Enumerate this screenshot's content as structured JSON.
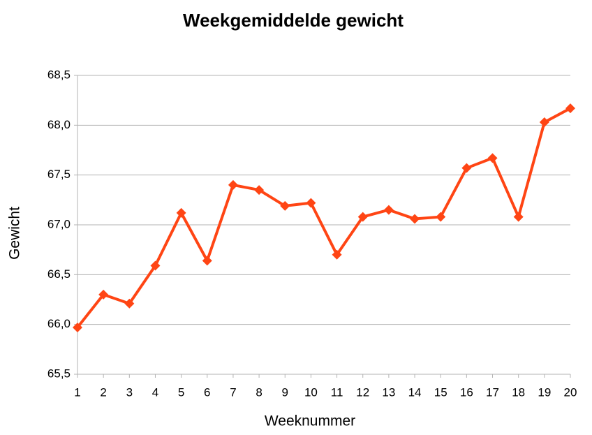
{
  "chart_data": {
    "type": "line",
    "title": "Weekgemiddelde gewicht",
    "x_label": "Weeknummer",
    "y_label": "Gewicht",
    "x": [
      1,
      2,
      3,
      4,
      5,
      6,
      7,
      8,
      9,
      10,
      11,
      12,
      13,
      14,
      15,
      16,
      17,
      18,
      19,
      20
    ],
    "series": [
      {
        "name": "Gewicht",
        "color": "#ff4514",
        "values": [
          65.97,
          66.3,
          66.21,
          66.59,
          67.12,
          66.64,
          67.4,
          67.35,
          67.19,
          67.22,
          66.7,
          67.08,
          67.15,
          67.06,
          67.08,
          67.57,
          67.67,
          67.08,
          68.03,
          68.17
        ]
      }
    ],
    "xlim": [
      1,
      20
    ],
    "xticks": [
      1,
      2,
      3,
      4,
      5,
      6,
      7,
      8,
      9,
      10,
      11,
      12,
      13,
      14,
      15,
      16,
      17,
      18,
      19,
      20
    ],
    "ylim": [
      65.5,
      68.5
    ],
    "yticks": [
      {
        "value": 65.5,
        "label": "65,5"
      },
      {
        "value": 66,
        "label": "66,0"
      },
      {
        "value": 66.5,
        "label": "66,5"
      },
      {
        "value": 67,
        "label": "67,0"
      },
      {
        "value": 67.5,
        "label": "67,5"
      },
      {
        "value": 68,
        "label": "68,0"
      },
      {
        "value": 68.5,
        "label": "68,5"
      }
    ],
    "grid": true
  }
}
